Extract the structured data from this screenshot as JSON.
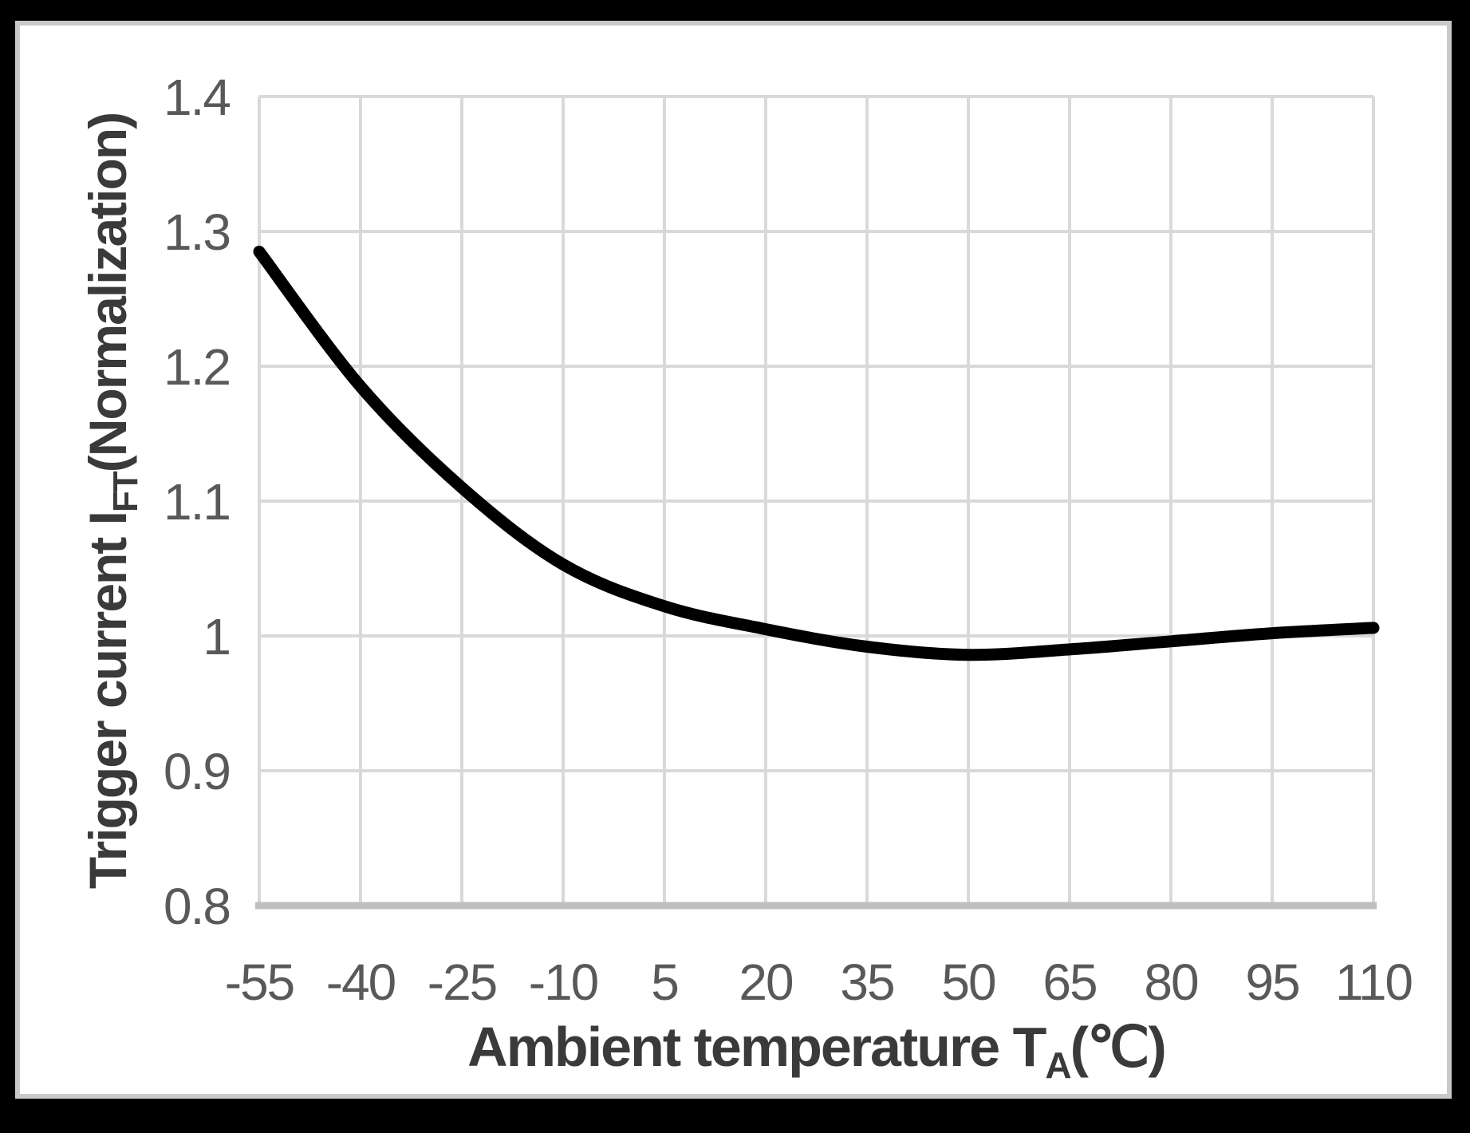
{
  "chart_data": {
    "type": "line",
    "title": "",
    "x": [
      -55,
      -40,
      -25,
      -10,
      5,
      20,
      35,
      50,
      65,
      80,
      95,
      110
    ],
    "series": [
      {
        "name": "trigger-current-normalized",
        "values": [
          1.285,
          1.185,
          1.11,
          1.053,
          1.022,
          1.005,
          0.992,
          0.986,
          0.99,
          0.996,
          1.002,
          1.006
        ]
      }
    ],
    "x_tick_labels": [
      "-55",
      "-40",
      "-25",
      "-10",
      "5",
      "20",
      "35",
      "50",
      "65",
      "80",
      "95",
      "110"
    ],
    "y_tick_values": [
      0.8,
      0.9,
      1.0,
      1.1,
      1.2,
      1.3,
      1.4
    ],
    "y_tick_labels": [
      "0.8",
      "0.9",
      "1",
      "1.1",
      "1.2",
      "1.3",
      "1.4"
    ],
    "xlim": [
      -55,
      110
    ],
    "ylim": [
      0.8,
      1.4
    ],
    "grid": true,
    "legend_position": "none",
    "xlabel": {
      "prefix": "Ambient temperature T",
      "sub": "A",
      "suffix": "(℃)"
    },
    "ylabel": {
      "prefix": "Trigger current I",
      "sub": "FT",
      "suffix": "(Normalization)"
    },
    "colors": {
      "line": "#000000",
      "grid": "#d9d9d9",
      "axis_line": "#bfbfbf",
      "tick_label": "#595959",
      "axis_title": "#3a3a3a",
      "plot_background": "#ffffff",
      "frame": "#000000",
      "panel_border": "#c9c9c9"
    }
  }
}
